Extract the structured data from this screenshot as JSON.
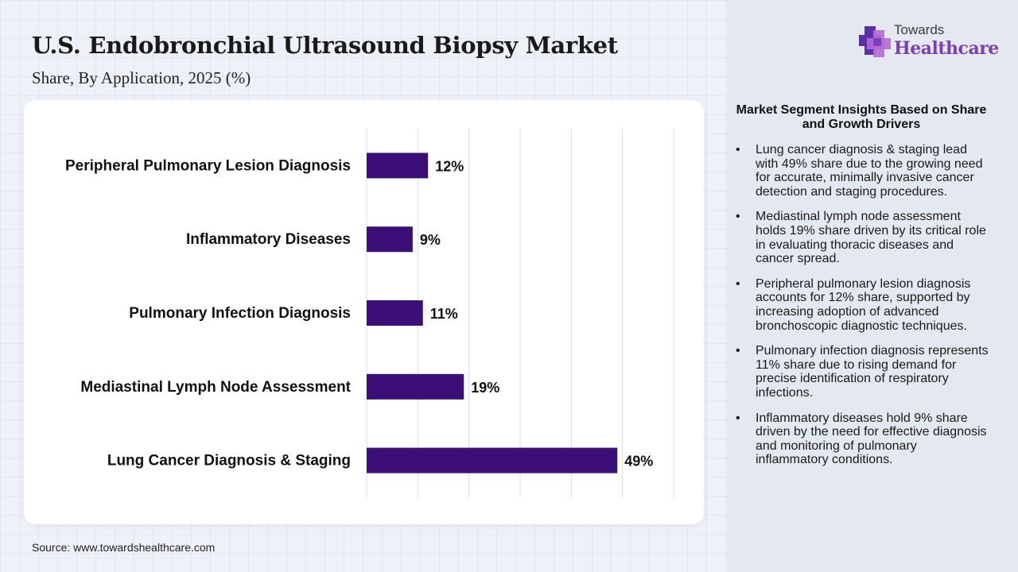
{
  "header": {
    "title": "U.S. Endobronchial Ultrasound Biopsy Market",
    "subtitle": "Share, By Application, 2025 (%)"
  },
  "logo": {
    "top": "Towards",
    "main": "Healthcare"
  },
  "chart_data": {
    "type": "bar",
    "orientation": "horizontal",
    "categories": [
      "Peripheral Pulmonary Lesion Diagnosis",
      "Inflammatory Diseases",
      "Pulmonary Infection Diagnosis",
      "Mediastinal Lymph Node Assessment",
      "Lung Cancer Diagnosis & Staging"
    ],
    "values": [
      12,
      9,
      11,
      19,
      49
    ],
    "data_labels": [
      "12%",
      "9%",
      "11%",
      "19%",
      "49%"
    ],
    "xlim": [
      0,
      60
    ],
    "grid": true,
    "bar_color": "#3c0f78"
  },
  "insights": {
    "title": "Market Segment Insights Based on Share and Growth Drivers",
    "bullet": "•",
    "items": [
      "Lung cancer diagnosis & staging lead with 49% share due to the growing need for accurate, minimally invasive cancer detection and staging procedures.",
      "Mediastinal lymph node assessment holds 19% share driven by its critical role in evaluating thoracic diseases and cancer spread.",
      "Peripheral pulmonary lesion diagnosis accounts for 12% share, supported by increasing adoption of advanced bronchoscopic diagnostic techniques.",
      "Pulmonary infection diagnosis represents 11% share due to rising demand for precise identification of respiratory infections.",
      "Inflammatory diseases hold 9% share driven by the need for effective diagnosis and monitoring of pulmonary inflammatory conditions."
    ]
  },
  "footer": {
    "source": "Source: www.towardshealthcare.com"
  }
}
